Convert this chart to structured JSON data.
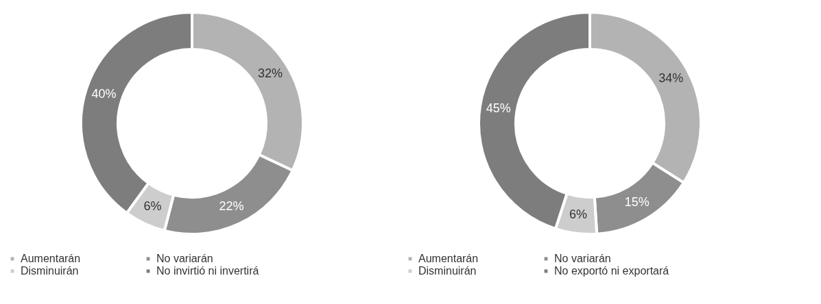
{
  "chart_data": [
    {
      "type": "donut",
      "categories": [
        "Aumentarán",
        "No variarán",
        "Disminuirán",
        "No invirtió ni invertirá"
      ],
      "values": [
        32,
        22,
        6,
        40
      ],
      "colors": [
        "#b3b3b3",
        "#8e8e8e",
        "#cdcdcd",
        "#7d7d7d"
      ],
      "value_labels": [
        "32%",
        "22%",
        "6%",
        "40%"
      ],
      "legend": "bottom"
    },
    {
      "type": "donut",
      "categories": [
        "Aumentarán",
        "No variarán",
        "Disminuirán",
        "No exportó ni exportará"
      ],
      "values": [
        34,
        15,
        6,
        45
      ],
      "colors": [
        "#b3b3b3",
        "#8e8e8e",
        "#cdcdcd",
        "#7d7d7d"
      ],
      "value_labels": [
        "34%",
        "15%",
        "6%",
        "45%"
      ],
      "legend": "bottom"
    }
  ]
}
